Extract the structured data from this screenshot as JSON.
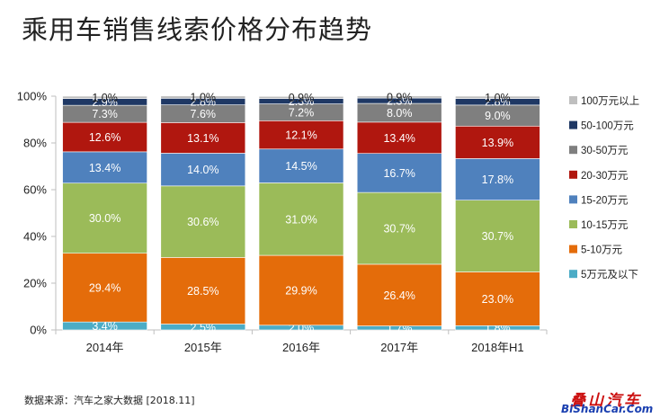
{
  "title": "乘用车销售线索价格分布趋势",
  "source_note": "数据来源：汽车之家大数据 [2018.11]",
  "logo": {
    "cn": "叠山汽车",
    "en": "BiShanCar.Com"
  },
  "chart_data": {
    "type": "bar",
    "stacked": true,
    "percent": true,
    "categories": [
      "2014年",
      "2015年",
      "2016年",
      "2017年",
      "2018年H1"
    ],
    "y_ticks": [
      "0%",
      "20%",
      "40%",
      "60%",
      "80%",
      "100%"
    ],
    "ylim": [
      0,
      100
    ],
    "grid": false,
    "legend_position": "right",
    "series": [
      {
        "name": "5万元及以下",
        "color": "#4bacc6",
        "values": [
          3.4,
          2.5,
          2.0,
          1.7,
          1.8
        ],
        "labels": [
          "3.4%",
          "2.5%",
          "2.0%",
          "1.7%",
          "1.8%"
        ]
      },
      {
        "name": "5-10万元",
        "color": "#e46c0a",
        "values": [
          29.4,
          28.5,
          29.9,
          26.4,
          23.0
        ],
        "labels": [
          "29.4%",
          "28.5%",
          "29.9%",
          "26.4%",
          "23.0%"
        ]
      },
      {
        "name": "10-15万元",
        "color": "#9bbb59",
        "values": [
          30.0,
          30.6,
          31.0,
          30.7,
          30.7
        ],
        "labels": [
          "30.0%",
          "30.6%",
          "31.0%",
          "30.7%",
          "30.7%"
        ]
      },
      {
        "name": "15-20万元",
        "color": "#4f81bd",
        "values": [
          13.4,
          14.0,
          14.5,
          16.7,
          17.8
        ],
        "labels": [
          "13.4%",
          "14.0%",
          "14.5%",
          "16.7%",
          "17.8%"
        ]
      },
      {
        "name": "20-30万元",
        "color": "#b0170f",
        "values": [
          12.6,
          13.1,
          12.1,
          13.4,
          13.9
        ],
        "labels": [
          "12.6%",
          "13.1%",
          "12.1%",
          "13.4%",
          "13.9%"
        ]
      },
      {
        "name": "30-50万元",
        "color": "#7f7f7f",
        "values": [
          7.3,
          7.6,
          7.2,
          8.0,
          9.0
        ],
        "labels": [
          "7.3%",
          "7.6%",
          "7.2%",
          "8.0%",
          "9.0%"
        ]
      },
      {
        "name": "50-100万元",
        "color": "#1f3864",
        "values": [
          2.9,
          2.8,
          2.3,
          2.3,
          2.8
        ],
        "labels": [
          "2.9%",
          "2.8%",
          "2.3%",
          "2.3%",
          "2.8%"
        ]
      },
      {
        "name": "100万元以上",
        "color": "#bfbfbf",
        "values": [
          1.0,
          1.0,
          0.9,
          0.9,
          1.0
        ],
        "labels": [
          "1.0%",
          "1.0%",
          "0.9%",
          "0.9%",
          "1.0%"
        ]
      }
    ]
  }
}
